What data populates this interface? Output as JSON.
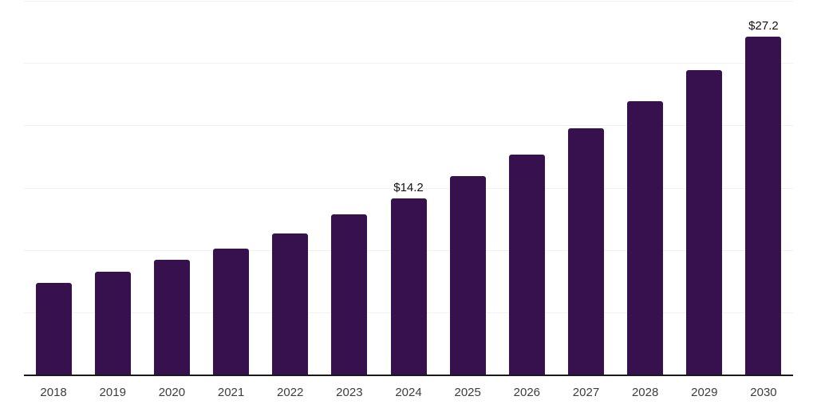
{
  "chart_data": {
    "type": "bar",
    "title": "",
    "xlabel": "",
    "ylabel": "",
    "categories": [
      "2018",
      "2019",
      "2020",
      "2021",
      "2022",
      "2023",
      "2024",
      "2025",
      "2026",
      "2027",
      "2028",
      "2029",
      "2030"
    ],
    "values": [
      7.4,
      8.3,
      9.3,
      10.2,
      11.4,
      12.9,
      14.2,
      16.0,
      17.7,
      19.8,
      22.0,
      24.5,
      27.2
    ],
    "data_labels": {
      "2024": "$14.2",
      "2030": "$27.2"
    },
    "value_prefix": "$",
    "ylim": [
      0,
      30
    ],
    "grid_step": 5,
    "grid": "on",
    "legend": "none",
    "colors": {
      "bar": "#36114e",
      "gridline": "#f2f2f4",
      "axis_line": "#1a1a1a",
      "tick_label": "#3d3d3d",
      "data_label": "#111111",
      "background": "#ffffff"
    }
  }
}
